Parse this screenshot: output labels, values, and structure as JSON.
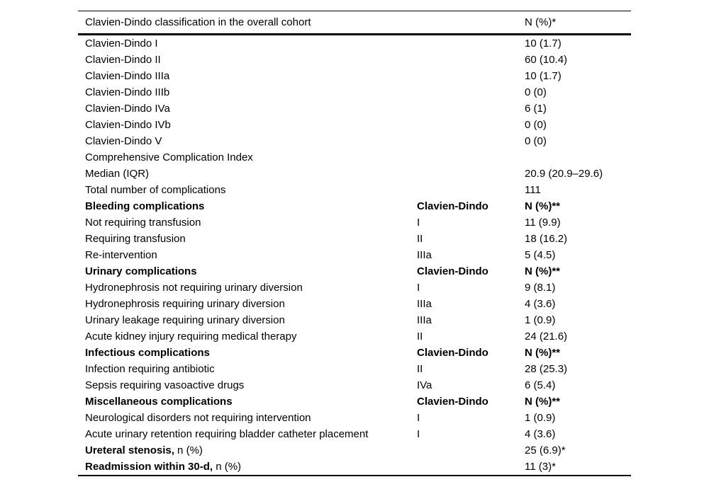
{
  "colors": {
    "text": "#000000",
    "background": "#ffffff",
    "rule": "#000000"
  },
  "table": {
    "header": {
      "title": "Clavien-Dindo classification in the overall cohort",
      "grade": "",
      "value": "N (%)*"
    },
    "rows": [
      {
        "label": "Clavien-Dindo I",
        "suffix": "",
        "grade": "",
        "value": "10 (1.7)",
        "section": false,
        "bold_label": false
      },
      {
        "label": "Clavien-Dindo II",
        "suffix": "",
        "grade": "",
        "value": "60 (10.4)",
        "section": false,
        "bold_label": false
      },
      {
        "label": "Clavien-Dindo IIIa",
        "suffix": "",
        "grade": "",
        "value": "10 (1.7)",
        "section": false,
        "bold_label": false
      },
      {
        "label": "Clavien-Dindo IIIb",
        "suffix": "",
        "grade": "",
        "value": "0 (0)",
        "section": false,
        "bold_label": false
      },
      {
        "label": "Clavien-Dindo IVa",
        "suffix": "",
        "grade": "",
        "value": "6 (1)",
        "section": false,
        "bold_label": false
      },
      {
        "label": "Clavien-Dindo IVb",
        "suffix": "",
        "grade": "",
        "value": "0 (0)",
        "section": false,
        "bold_label": false
      },
      {
        "label": "Clavien-Dindo V",
        "suffix": "",
        "grade": "",
        "value": "0 (0)",
        "section": false,
        "bold_label": false
      },
      {
        "label": "Comprehensive Complication Index",
        "suffix": "",
        "grade": "",
        "value": "",
        "section": false,
        "bold_label": false
      },
      {
        "label": "Median (IQR)",
        "suffix": "",
        "grade": "",
        "value": "20.9 (20.9–29.6)",
        "section": false,
        "bold_label": false
      },
      {
        "label": "Total number of complications",
        "suffix": "",
        "grade": "",
        "value": "111",
        "section": false,
        "bold_label": false
      },
      {
        "label": "Bleeding complications",
        "suffix": "",
        "grade": "Clavien-Dindo",
        "value": "N (%)**",
        "section": true,
        "bold_label": false
      },
      {
        "label": "Not requiring transfusion",
        "suffix": "",
        "grade": "I",
        "value": "11 (9.9)",
        "section": false,
        "bold_label": false
      },
      {
        "label": "Requiring transfusion",
        "suffix": "",
        "grade": "II",
        "value": "18 (16.2)",
        "section": false,
        "bold_label": false
      },
      {
        "label": "Re-intervention",
        "suffix": "",
        "grade": "IIIa",
        "value": "5 (4.5)",
        "section": false,
        "bold_label": false
      },
      {
        "label": "Urinary complications",
        "suffix": "",
        "grade": "Clavien-Dindo",
        "value": "N (%)**",
        "section": true,
        "bold_label": false
      },
      {
        "label": "Hydronephrosis not requiring urinary diversion",
        "suffix": "",
        "grade": "I",
        "value": "9 (8.1)",
        "section": false,
        "bold_label": false
      },
      {
        "label": "Hydronephrosis requiring urinary diversion",
        "suffix": "",
        "grade": "IIIa",
        "value": "4 (3.6)",
        "section": false,
        "bold_label": false
      },
      {
        "label": "Urinary leakage requiring urinary diversion",
        "suffix": "",
        "grade": "IIIa",
        "value": "1 (0.9)",
        "section": false,
        "bold_label": false
      },
      {
        "label": "Acute kidney injury requiring medical therapy",
        "suffix": "",
        "grade": "II",
        "value": "24 (21.6)",
        "section": false,
        "bold_label": false
      },
      {
        "label": "Infectious complications",
        "suffix": "",
        "grade": "Clavien-Dindo",
        "value": "N (%)**",
        "section": true,
        "bold_label": false
      },
      {
        "label": "Infection requiring antibiotic",
        "suffix": "",
        "grade": "II",
        "value": "28 (25.3)",
        "section": false,
        "bold_label": false
      },
      {
        "label": "Sepsis requiring vasoactive drugs",
        "suffix": "",
        "grade": "IVa",
        "value": "6 (5.4)",
        "section": false,
        "bold_label": false
      },
      {
        "label": "Miscellaneous complications",
        "suffix": "",
        "grade": "Clavien-Dindo",
        "value": "N (%)**",
        "section": true,
        "bold_label": false
      },
      {
        "label": "Neurological disorders not requiring intervention",
        "suffix": "",
        "grade": "I",
        "value": "1 (0.9)",
        "section": false,
        "bold_label": false
      },
      {
        "label": "Acute urinary retention requiring bladder catheter placement",
        "suffix": "",
        "grade": "I",
        "value": "4 (3.6)",
        "section": false,
        "bold_label": false
      },
      {
        "label": "Ureteral stenosis,",
        "suffix": " n (%)",
        "grade": "",
        "value": "25 (6.9)*",
        "section": false,
        "bold_label": true
      },
      {
        "label": "Readmission within 30-d,",
        "suffix": " n (%)",
        "grade": "",
        "value": "11 (3)*",
        "section": false,
        "bold_label": true
      }
    ]
  }
}
